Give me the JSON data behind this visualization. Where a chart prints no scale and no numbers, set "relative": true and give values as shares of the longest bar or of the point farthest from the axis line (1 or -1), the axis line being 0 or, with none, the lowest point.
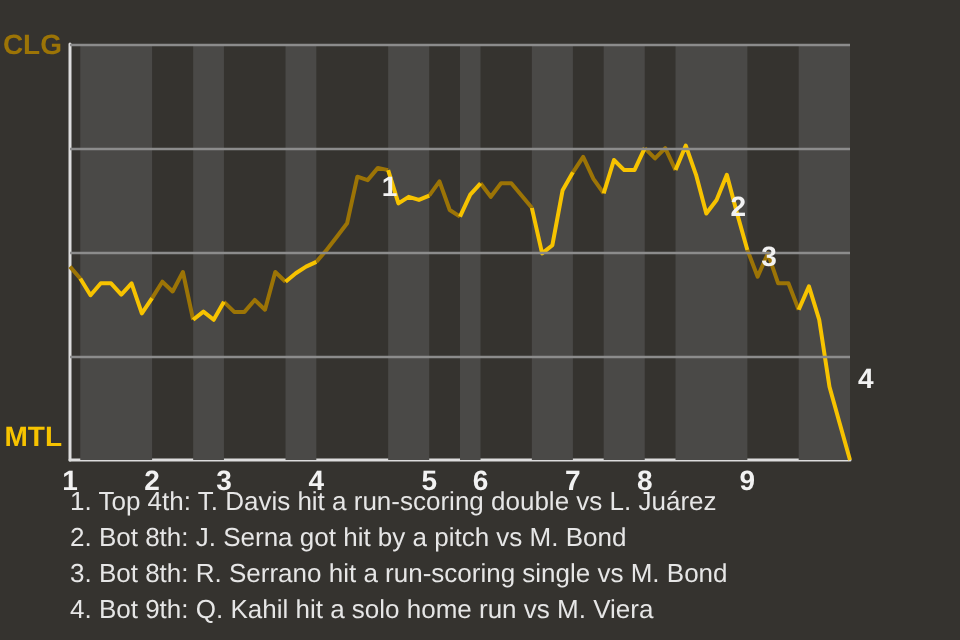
{
  "chart_data": {
    "type": "line",
    "relative": true,
    "categories": [
      "1",
      null,
      null,
      null,
      null,
      null,
      null,
      null,
      "2",
      null,
      null,
      null,
      null,
      null,
      null,
      "3",
      null,
      null,
      null,
      null,
      null,
      null,
      null,
      null,
      "4",
      null,
      null,
      null,
      null,
      null,
      null,
      null,
      null,
      null,
      null,
      "5",
      null,
      null,
      null,
      null,
      "6",
      null,
      null,
      null,
      null,
      null,
      null,
      null,
      null,
      "7",
      null,
      null,
      null,
      null,
      null,
      null,
      "8",
      null,
      null,
      null,
      null,
      null,
      null,
      null,
      null,
      null,
      "9",
      null,
      null,
      null,
      null,
      null,
      null,
      null,
      null,
      null,
      null
    ],
    "ref_lines": [
      {
        "axis": "y",
        "value": 0.331,
        "color": "#8c8c8c"
      },
      {
        "axis": "y",
        "value": 0.661,
        "color": "#8c8c8c"
      },
      {
        "axis": "y",
        "value": 0.992,
        "color": "#8c8c8c"
      },
      {
        "axis": "y",
        "value": 1.323,
        "color": "#8c8c8c"
      }
    ],
    "series": [
      {
        "color": "#9c7406",
        "values": [
          0.615,
          0.577,
          null,
          null,
          null,
          null,
          null,
          null,
          0.515,
          0.567,
          0.536,
          0.598,
          0.446,
          null,
          null,
          0.503,
          0.471,
          0.471,
          0.509,
          0.478,
          0.598,
          0.567,
          null,
          null,
          0.63,
          0.668,
          0.71,
          0.753,
          0.901,
          0.89,
          0.929,
          0.922,
          null,
          null,
          null,
          0.841,
          0.886,
          0.795,
          0.774,
          null,
          0.88,
          0.837,
          0.88,
          0.88,
          0.841,
          0.802,
          null,
          null,
          null,
          0.915,
          0.964,
          0.894,
          0.848,
          null,
          null,
          null,
          0.992,
          0.959,
          0.992,
          0.922,
          null,
          null,
          null,
          null,
          null,
          null,
          0.668,
          0.583,
          0.657,
          0.562,
          0.562,
          0.478,
          null,
          null,
          null,
          null,
          null
        ]
      },
      {
        "color": "#f7c300",
        "values": [
          null,
          0.577,
          0.524,
          0.562,
          0.562,
          0.526,
          0.562,
          0.466,
          0.515,
          null,
          null,
          null,
          0.446,
          0.472,
          0.446,
          0.503,
          null,
          null,
          null,
          null,
          null,
          0.567,
          0.594,
          0.615,
          0.63,
          null,
          null,
          null,
          null,
          null,
          null,
          0.922,
          0.816,
          0.837,
          0.827,
          0.841,
          null,
          null,
          0.774,
          0.844,
          0.88,
          null,
          null,
          null,
          null,
          0.802,
          0.657,
          0.683,
          0.858,
          0.915,
          null,
          null,
          0.848,
          0.954,
          0.922,
          0.922,
          0.992,
          null,
          null,
          0.922,
          1,
          0.907,
          0.784,
          0.827,
          0.907,
          0.784,
          0.668,
          null,
          null,
          null,
          null,
          0.478,
          0.552,
          0.446,
          0.233,
          0.116,
          0
        ]
      }
    ],
    "annotations": [
      "CLG",
      "MTL",
      {
        "text": "1",
        "y": 0.89
      },
      {
        "text": "2",
        "y": 0.827
      },
      {
        "text": "3",
        "y": 0.668
      },
      "4",
      "1. Top 4th: T. Davis hit a run-scoring double vs L. Juárez",
      "2. Bot 8th: J. Serna got hit by a pitch vs M. Bond",
      "3. Bot 8th: R. Serrano hit a run-scoring single vs M. Bond",
      "4. Bot 9th: Q. Kahil hit a solo home run vs M. Viera"
    ]
  }
}
